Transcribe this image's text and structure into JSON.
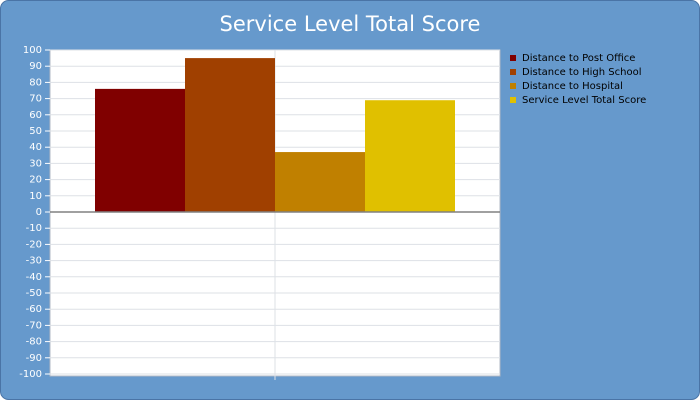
{
  "chart_data": {
    "type": "bar",
    "title": "Service Level Total Score",
    "categories": [
      null
    ],
    "series": [
      {
        "name": "Distance to Post Office",
        "color": "#800000",
        "values": [
          76
        ]
      },
      {
        "name": "Distance to High School",
        "color": "#a04000",
        "values": [
          95
        ]
      },
      {
        "name": "Distance to Hospital",
        "color": "#c08000",
        "values": [
          37
        ]
      },
      {
        "name": "Service Level Total Score",
        "color": "#e0c000",
        "values": [
          69
        ]
      }
    ],
    "ylim": [
      -100,
      100
    ],
    "yticks": [
      100,
      90,
      80,
      70,
      60,
      50,
      40,
      30,
      20,
      10,
      0,
      -10,
      -20,
      -30,
      -40,
      -50,
      -60,
      -70,
      -80,
      -90,
      -100
    ],
    "grid": true,
    "legend": "right"
  }
}
